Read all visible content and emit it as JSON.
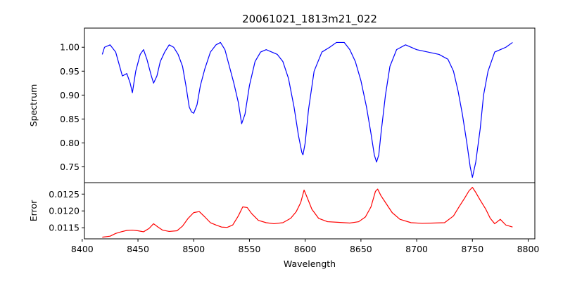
{
  "chart_data": [
    {
      "type": "line",
      "title": "20061021_1813m21_022",
      "xlabel": "",
      "ylabel": "Spectrum",
      "xlim": [
        8402,
        8806
      ],
      "ylim": [
        0.717,
        1.04
      ],
      "x_ticks": [
        8400,
        8450,
        8500,
        8550,
        8600,
        8650,
        8700,
        8750,
        8800
      ],
      "y_ticks": [
        0.75,
        0.8,
        0.85,
        0.9,
        0.95,
        1.0
      ],
      "y_tick_labels": [
        "0.75",
        "0.80",
        "0.85",
        "0.90",
        "0.95",
        "1.00"
      ],
      "series": [
        {
          "color": "#0000ff",
          "x": [
            8418,
            8420,
            8425,
            8430,
            8433,
            8436,
            8440,
            8443,
            8445,
            8448,
            8452,
            8455,
            8458,
            8462,
            8464,
            8467,
            8470,
            8474,
            8478,
            8482,
            8486,
            8490,
            8493,
            8496,
            8498,
            8500,
            8503,
            8506,
            8510,
            8515,
            8520,
            8524,
            8528,
            8532,
            8536,
            8540,
            8543,
            8546,
            8550,
            8555,
            8560,
            8565,
            8570,
            8575,
            8580,
            8585,
            8590,
            8594,
            8597,
            8598,
            8600,
            8603,
            8608,
            8615,
            8622,
            8628,
            8635,
            8640,
            8645,
            8650,
            8655,
            8659,
            8662,
            8664,
            8666,
            8668,
            8672,
            8676,
            8682,
            8690,
            8700,
            8710,
            8720,
            8728,
            8733,
            8737,
            8741,
            8745,
            8748,
            8750,
            8753,
            8757,
            8760,
            8764,
            8770,
            8775,
            8780,
            8786
          ],
          "y": [
            0.985,
            1.0,
            1.005,
            0.99,
            0.965,
            0.94,
            0.945,
            0.925,
            0.905,
            0.95,
            0.985,
            0.995,
            0.975,
            0.94,
            0.925,
            0.94,
            0.97,
            0.99,
            1.005,
            1.0,
            0.985,
            0.96,
            0.92,
            0.875,
            0.865,
            0.862,
            0.88,
            0.92,
            0.955,
            0.99,
            1.005,
            1.01,
            0.995,
            0.96,
            0.925,
            0.885,
            0.84,
            0.86,
            0.92,
            0.97,
            0.99,
            0.995,
            0.99,
            0.985,
            0.97,
            0.935,
            0.875,
            0.815,
            0.78,
            0.775,
            0.8,
            0.87,
            0.95,
            0.99,
            1.0,
            1.01,
            1.01,
            0.995,
            0.97,
            0.93,
            0.875,
            0.82,
            0.775,
            0.76,
            0.775,
            0.82,
            0.9,
            0.96,
            0.995,
            1.005,
            0.995,
            0.99,
            0.985,
            0.975,
            0.95,
            0.91,
            0.86,
            0.8,
            0.75,
            0.728,
            0.76,
            0.83,
            0.9,
            0.95,
            0.99,
            0.995,
            1.0,
            1.01
          ]
        }
      ]
    },
    {
      "type": "line",
      "title": "",
      "xlabel": "Wavelength",
      "ylabel": "Error",
      "xlim": [
        8402,
        8806
      ],
      "ylim": [
        0.01117,
        0.01284
      ],
      "x_ticks": [
        8400,
        8450,
        8500,
        8550,
        8600,
        8650,
        8700,
        8750,
        8800
      ],
      "x_tick_labels": [
        "8400",
        "8450",
        "8500",
        "8550",
        "8600",
        "8650",
        "8700",
        "8750",
        "8800"
      ],
      "y_ticks": [
        0.0115,
        0.012,
        0.0125
      ],
      "y_tick_labels": [
        "0.0115",
        "0.0120",
        "0.0125"
      ],
      "series": [
        {
          "color": "#ff0000",
          "x": [
            8418,
            8425,
            8430,
            8435,
            8440,
            8445,
            8450,
            8455,
            8460,
            8464,
            8468,
            8472,
            8478,
            8485,
            8490,
            8495,
            8500,
            8505,
            8510,
            8515,
            8520,
            8525,
            8530,
            8535,
            8540,
            8544,
            8548,
            8552,
            8558,
            8565,
            8572,
            8580,
            8587,
            8592,
            8596,
            8599,
            8602,
            8606,
            8612,
            8620,
            8630,
            8640,
            8648,
            8654,
            8659,
            8663,
            8665,
            8668,
            8672,
            8678,
            8685,
            8695,
            8705,
            8715,
            8725,
            8733,
            8738,
            8743,
            8747,
            8750,
            8753,
            8757,
            8762,
            8766,
            8770,
            8775,
            8780,
            8786
          ],
          "y": [
            0.01122,
            0.01125,
            0.01133,
            0.01138,
            0.01142,
            0.01143,
            0.01141,
            0.01138,
            0.01148,
            0.01162,
            0.01152,
            0.01143,
            0.01139,
            0.01141,
            0.01155,
            0.01178,
            0.01195,
            0.01198,
            0.01182,
            0.01165,
            0.01158,
            0.01152,
            0.01151,
            0.01158,
            0.01185,
            0.01212,
            0.0121,
            0.01192,
            0.01172,
            0.01165,
            0.01162,
            0.01165,
            0.01178,
            0.01198,
            0.01225,
            0.01262,
            0.01238,
            0.01205,
            0.01178,
            0.01168,
            0.01166,
            0.01164,
            0.01168,
            0.01182,
            0.01212,
            0.01258,
            0.01265,
            0.01245,
            0.01225,
            0.01195,
            0.01175,
            0.01165,
            0.01163,
            0.01164,
            0.01165,
            0.01185,
            0.01212,
            0.01238,
            0.0126,
            0.0127,
            0.01255,
            0.01232,
            0.01205,
            0.01178,
            0.01162,
            0.01175,
            0.01158,
            0.01152
          ]
        }
      ]
    }
  ]
}
